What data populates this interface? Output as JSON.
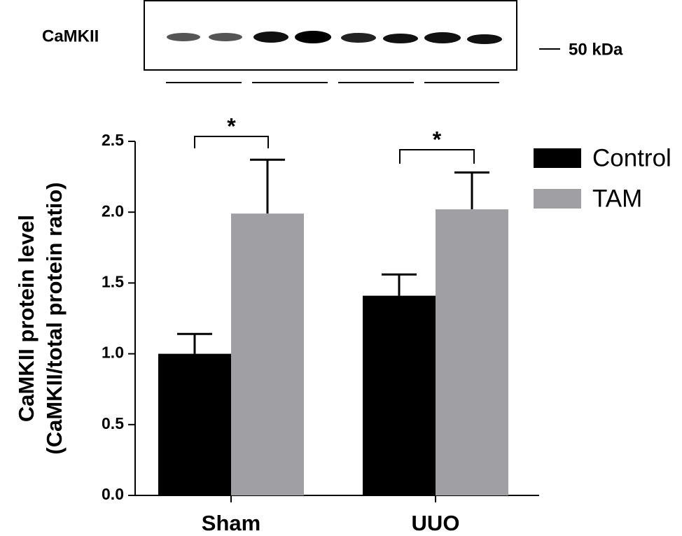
{
  "chart_data": {
    "type": "bar",
    "blot_label": "CaMKII",
    "blot_marker": "50 kDa",
    "ylabel": [
      "CaMKII protein level",
      "(CaMKII/total protein ratio)"
    ],
    "categories": [
      "Sham",
      "UUO"
    ],
    "series": [
      {
        "name": "Control",
        "color": "#000000",
        "values": [
          1.0,
          1.41
        ],
        "errors": [
          0.14,
          0.15
        ]
      },
      {
        "name": "TAM",
        "color": "#a0a0a4",
        "values": [
          1.99,
          2.02
        ],
        "errors": [
          0.38,
          0.26
        ]
      }
    ],
    "annotations": [
      "*",
      "*"
    ],
    "ylim": [
      0,
      2.5
    ],
    "yticks": [
      {
        "value": 0,
        "label": "0.0"
      },
      0.5,
      {
        "value": 1,
        "label": "1.0"
      },
      1.5,
      {
        "value": 2,
        "label": "2.0"
      },
      2.5
    ],
    "legend": "right"
  }
}
